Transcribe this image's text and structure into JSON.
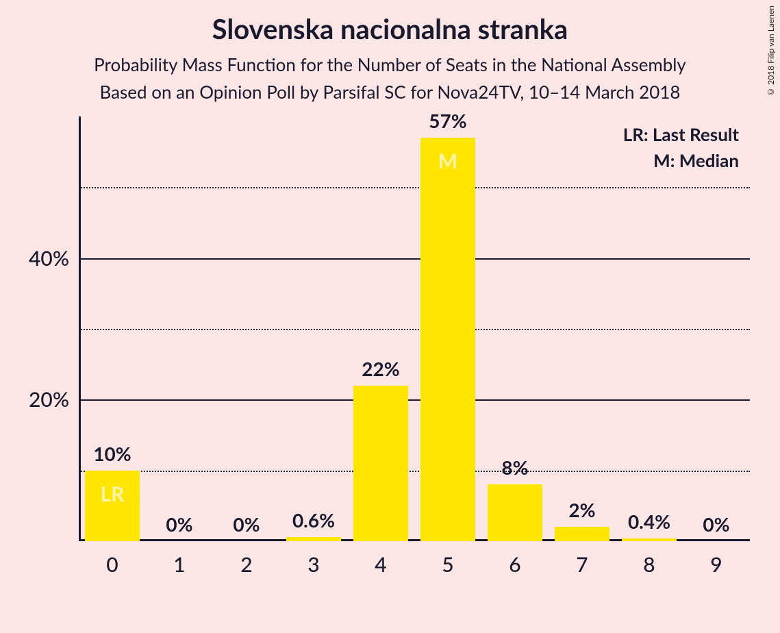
{
  "title": "Slovenska nacionalna stranka",
  "subtitle1": "Probability Mass Function for the Number of Seats in the National Assembly",
  "subtitle2": "Based on an Opinion Poll by Parsifal SC for Nova24TV, 10–14 March 2018",
  "copyright": "© 2018 Filip van Laenen",
  "chart": {
    "type": "bar",
    "background_color": "#fce5e5",
    "bar_color": "#ffe600",
    "axis_color": "#1a1a2e",
    "grid_major_color": "#1a1a2e",
    "grid_minor_color": "#1a1a2e",
    "text_color": "#1a1a2e",
    "inner_label_color": "#fff3b0",
    "title_fontsize": 40,
    "subtitle_fontsize": 26,
    "label_fontsize": 28,
    "tick_fontsize": 30,
    "legend_fontsize": 26,
    "ylim": [
      0,
      60
    ],
    "major_yticks": [
      20,
      40
    ],
    "minor_yticks": [
      10,
      30,
      50
    ],
    "bar_width": 0.82,
    "categories": [
      "0",
      "1",
      "2",
      "3",
      "4",
      "5",
      "6",
      "7",
      "8",
      "9"
    ],
    "values": [
      10,
      0,
      0,
      0.6,
      22,
      57,
      8,
      2,
      0.4,
      0
    ],
    "value_labels": [
      "10%",
      "0%",
      "0%",
      "0.6%",
      "22%",
      "57%",
      "8%",
      "2%",
      "0.4%",
      "0%"
    ],
    "inner_labels": {
      "0": "LR",
      "5": "M"
    },
    "legend": {
      "LR": "LR: Last Result",
      "M": "M: Median"
    }
  }
}
